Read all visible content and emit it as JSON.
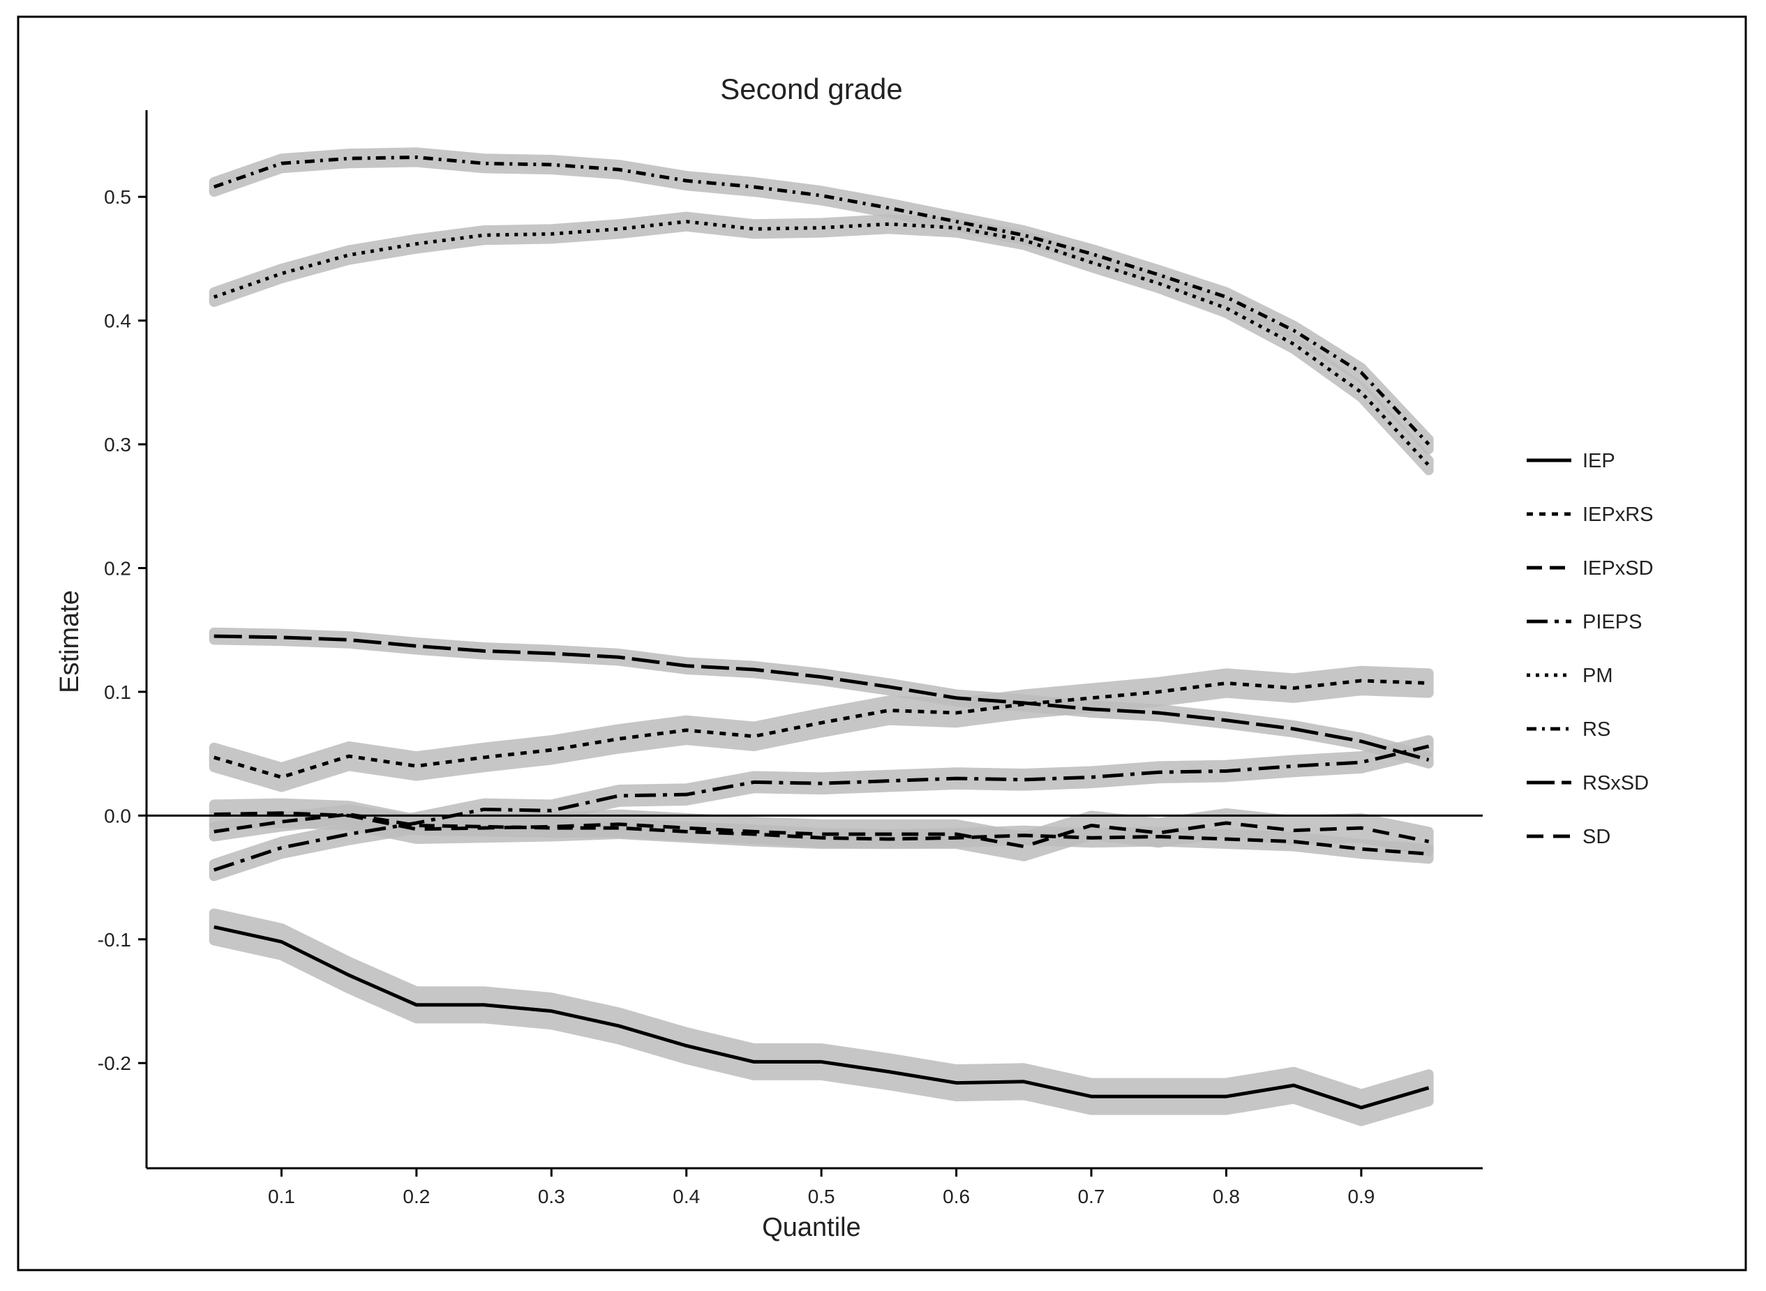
{
  "chart_data": {
    "type": "line",
    "title": "Second grade",
    "xlabel": "Quantile",
    "ylabel": "Estimate",
    "xlim": [
      0,
      0.99
    ],
    "ylim": [
      -0.285,
      0.57
    ],
    "xticks": [
      "0.1",
      "0.2",
      "0.3",
      "0.4",
      "0.5",
      "0.6",
      "0.7",
      "0.8",
      "0.9"
    ],
    "yticks": [
      "-0.2",
      "-0.1",
      "0.0",
      "0.1",
      "0.2",
      "0.3",
      "0.4",
      "0.5"
    ],
    "reference_line": 0.0,
    "confidence_band": "light gray",
    "legend_position": "right",
    "x": [
      0.05,
      0.1,
      0.15,
      0.2,
      0.25,
      0.3,
      0.35,
      0.4,
      0.45,
      0.5,
      0.55,
      0.6,
      0.65,
      0.7,
      0.75,
      0.8,
      0.85,
      0.9,
      0.95
    ],
    "series": [
      {
        "name": "IEP",
        "dash": "solid",
        "band": 0.011,
        "values": [
          -0.09,
          -0.102,
          -0.129,
          -0.153,
          -0.153,
          -0.158,
          -0.17,
          -0.186,
          -0.199,
          -0.199,
          -0.207,
          -0.216,
          -0.215,
          -0.227,
          -0.227,
          -0.227,
          -0.218,
          -0.236,
          -0.22
        ]
      },
      {
        "name": "IEPxRS",
        "dash": "dotted-short",
        "band": 0.008,
        "values": [
          0.047,
          0.031,
          0.048,
          0.04,
          0.047,
          0.053,
          0.062,
          0.069,
          0.064,
          0.075,
          0.085,
          0.083,
          0.09,
          0.095,
          0.1,
          0.107,
          0.103,
          0.109,
          0.107
        ]
      },
      {
        "name": "IEPxSD",
        "dash": "dashed",
        "band": 0.004,
        "values": [
          -0.013,
          -0.005,
          0.001,
          -0.008,
          -0.009,
          -0.01,
          -0.01,
          -0.013,
          -0.015,
          -0.018,
          -0.019,
          -0.018,
          -0.016,
          -0.018,
          -0.017,
          -0.019,
          -0.021,
          -0.027,
          -0.031
        ]
      },
      {
        "name": "PIEPS",
        "dash": "dash-dot-long",
        "band": 0.005,
        "values": [
          -0.044,
          -0.026,
          -0.015,
          -0.006,
          0.005,
          0.004,
          0.016,
          0.017,
          0.027,
          0.026,
          0.028,
          0.03,
          0.029,
          0.031,
          0.035,
          0.036,
          0.04,
          0.043,
          0.056
        ]
      },
      {
        "name": "PM",
        "dash": "dotted",
        "band": 0.004,
        "values": [
          0.419,
          0.438,
          0.453,
          0.462,
          0.469,
          0.47,
          0.474,
          0.48,
          0.474,
          0.475,
          0.478,
          0.475,
          0.465,
          0.447,
          0.43,
          0.41,
          0.381,
          0.342,
          0.283
        ]
      },
      {
        "name": "RS",
        "dash": "dash-dot",
        "band": 0.004,
        "values": [
          0.508,
          0.527,
          0.531,
          0.532,
          0.527,
          0.526,
          0.522,
          0.513,
          0.508,
          0.501,
          0.491,
          0.48,
          0.469,
          0.454,
          0.437,
          0.419,
          0.392,
          0.358,
          0.3
        ]
      },
      {
        "name": "RSxSD",
        "dash": "long-dash",
        "band": 0.003,
        "values": [
          0.145,
          0.144,
          0.142,
          0.137,
          0.133,
          0.131,
          0.128,
          0.121,
          0.118,
          0.112,
          0.104,
          0.095,
          0.091,
          0.086,
          0.083,
          0.077,
          0.07,
          0.06,
          0.045
        ]
      },
      {
        "name": "SD",
        "dash": "dashed-medium",
        "band": 0.008,
        "values": [
          0.001,
          0.002,
          0.0,
          -0.011,
          -0.01,
          -0.009,
          -0.007,
          -0.01,
          -0.013,
          -0.015,
          -0.015,
          -0.015,
          -0.025,
          -0.008,
          -0.014,
          -0.006,
          -0.012,
          -0.01,
          -0.021
        ]
      }
    ]
  }
}
